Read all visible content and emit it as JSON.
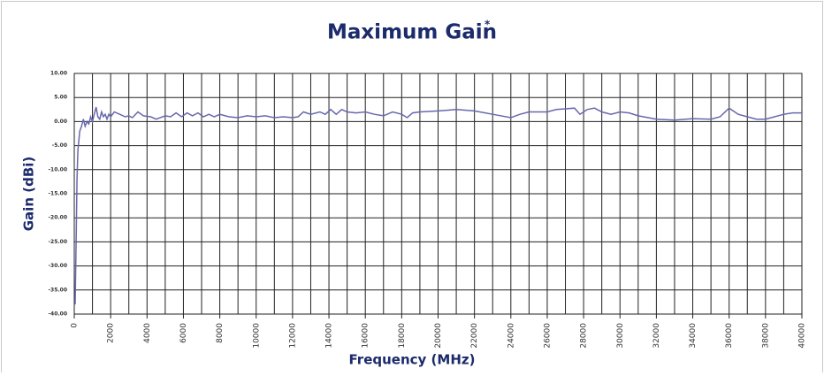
{
  "chart_data": {
    "type": "line",
    "title": "Maximum Gain",
    "title_mark": "*",
    "xlabel": "Frequency (MHz)",
    "ylabel": "Gain (dBi)",
    "xlim": [
      0,
      40000
    ],
    "ylim": [
      -40,
      10
    ],
    "xticks": [
      0,
      2000,
      4000,
      6000,
      8000,
      10000,
      12000,
      14000,
      16000,
      18000,
      20000,
      22000,
      24000,
      26000,
      28000,
      30000,
      32000,
      34000,
      36000,
      38000,
      40000
    ],
    "minor_xticks": [
      1000,
      3000,
      5000,
      7000,
      9000,
      11000,
      13000,
      15000,
      17000,
      19000,
      21000,
      23000,
      25000,
      27000,
      29000,
      31000,
      33000,
      35000,
      37000,
      39000
    ],
    "yticks": [
      {
        "value": 10,
        "label": "10.00"
      },
      {
        "value": 5,
        "label": "5.00"
      },
      {
        "value": 0,
        "label": "0.00"
      },
      {
        "value": -5,
        "label": "-5.00"
      },
      {
        "value": -10,
        "label": "-10.00"
      },
      {
        "value": -15,
        "label": "-15.00"
      },
      {
        "value": -20,
        "label": "-20.00"
      },
      {
        "value": -25,
        "label": "-25.00"
      },
      {
        "value": -30,
        "label": "-30.00"
      },
      {
        "value": -35,
        "label": "-35.00"
      },
      {
        "value": -40,
        "label": "-40.00"
      }
    ],
    "grid": true,
    "x": [
      50,
      100,
      150,
      200,
      300,
      400,
      500,
      600,
      700,
      800,
      900,
      1000,
      1100,
      1200,
      1300,
      1400,
      1500,
      1600,
      1700,
      1800,
      1900,
      2000,
      2200,
      2500,
      2800,
      3000,
      3200,
      3500,
      3800,
      4200,
      4500,
      5000,
      5300,
      5600,
      5900,
      6200,
      6500,
      6800,
      7100,
      7400,
      7700,
      8000,
      8500,
      9000,
      9500,
      10000,
      10500,
      11000,
      11500,
      12000,
      12300,
      12600,
      13000,
      13500,
      13800,
      14100,
      14400,
      14700,
      15000,
      15500,
      16000,
      16500,
      17000,
      17500,
      18000,
      18300,
      18600,
      19000,
      20000,
      21000,
      22000,
      23000,
      24000,
      24500,
      25000,
      26000,
      26500,
      27500,
      27800,
      28200,
      28600,
      29000,
      29500,
      30000,
      30500,
      31000,
      32000,
      33000,
      34000,
      35000,
      35500,
      36000,
      36500,
      37000,
      37500,
      38000,
      38500,
      39000,
      39500,
      40000
    ],
    "series": [
      {
        "name": "Maximum Gain",
        "color": "#6868ad",
        "values": [
          -38,
          -25,
          -12,
          -6,
          -2,
          -1,
          0.5,
          -1,
          0,
          -0.5,
          1,
          0,
          1.5,
          3,
          1,
          0.5,
          2,
          1,
          1.5,
          0.5,
          1.5,
          1,
          2,
          1.5,
          1,
          1.2,
          0.8,
          2,
          1.2,
          1,
          0.5,
          1.2,
          1,
          1.8,
          1,
          1.8,
          1.2,
          1.8,
          1,
          1.5,
          1,
          1.5,
          1,
          0.8,
          1.2,
          1,
          1.2,
          0.8,
          1,
          0.8,
          1,
          2,
          1.5,
          2,
          1.5,
          2.5,
          1.5,
          2.5,
          2,
          1.8,
          2,
          1.5,
          1.2,
          2,
          1.5,
          0.8,
          1.8,
          2,
          2.2,
          2.5,
          2.2,
          1.5,
          0.8,
          1.5,
          2,
          2,
          2.5,
          2.8,
          1.5,
          2.5,
          2.8,
          2,
          1.5,
          2,
          1.8,
          1.2,
          0.5,
          0.3,
          0.6,
          0.5,
          1,
          2.8,
          1.5,
          1,
          0.5,
          0.5,
          1,
          1.5,
          1.8,
          1.8
        ]
      }
    ]
  }
}
